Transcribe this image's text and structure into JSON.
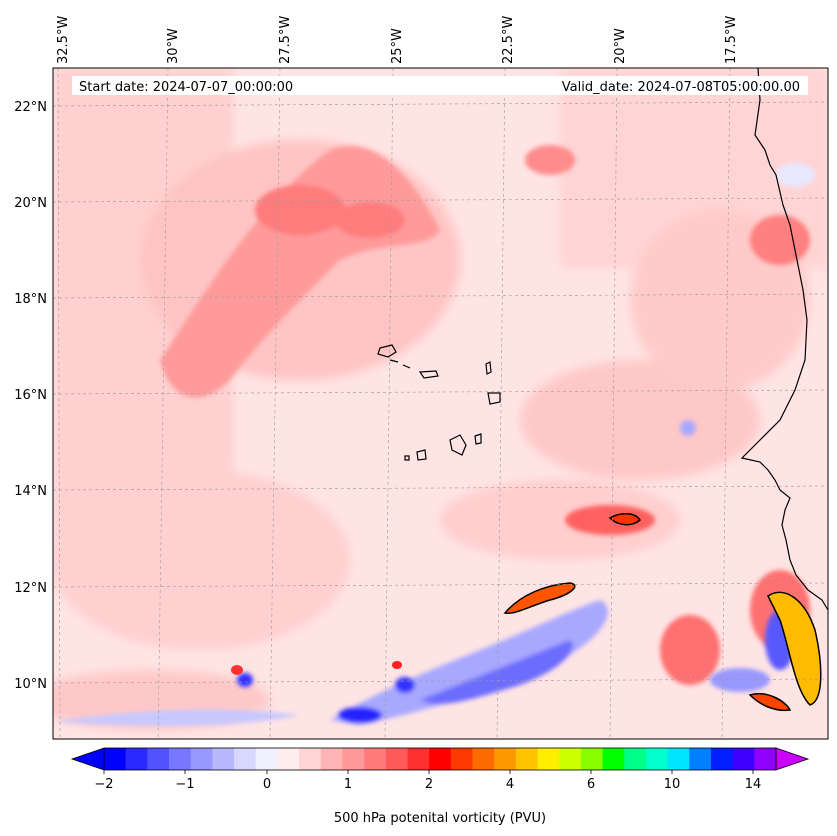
{
  "header": {
    "start_date": "Start date: 2024-07-07_00:00:00",
    "valid_date": "Valid_date: 2024-07-08T05:00:00.00"
  },
  "map": {
    "longitude_labels": [
      "32.5°W",
      "30°W",
      "27.5°W",
      "25°W",
      "22.5°W",
      "20°W",
      "17.5°W"
    ],
    "latitude_labels": [
      "22°N",
      "20°N",
      "18°N",
      "16°N",
      "14°N",
      "12°N",
      "10°N"
    ],
    "gridlines": true,
    "coastline_color": "#000000"
  },
  "colorbar": {
    "label": "500 hPa potenital vorticity (PVU)",
    "tick_labels": [
      "−2",
      "−1",
      "0",
      "1",
      "2",
      "4",
      "6",
      "10",
      "14"
    ],
    "colors": [
      "#0000ff",
      "#2a2aff",
      "#5252ff",
      "#7777ff",
      "#9898ff",
      "#b8b8ff",
      "#d8d8ff",
      "#f0f0ff",
      "#ffecec",
      "#ffd4d4",
      "#ffb4b4",
      "#ff9898",
      "#ff7a7a",
      "#ff5a5a",
      "#ff3030",
      "#ff0000",
      "#ff3a00",
      "#ff6a00",
      "#ff9900",
      "#ffc400",
      "#ffee00",
      "#ccff00",
      "#88ff00",
      "#00ff00",
      "#00ff88",
      "#00ffcc",
      "#00e5ff",
      "#0080ff",
      "#0020ff",
      "#4000ff",
      "#9000ff"
    ],
    "extend_min_color": "#0000ff",
    "extend_max_color": "#cc00ff"
  }
}
